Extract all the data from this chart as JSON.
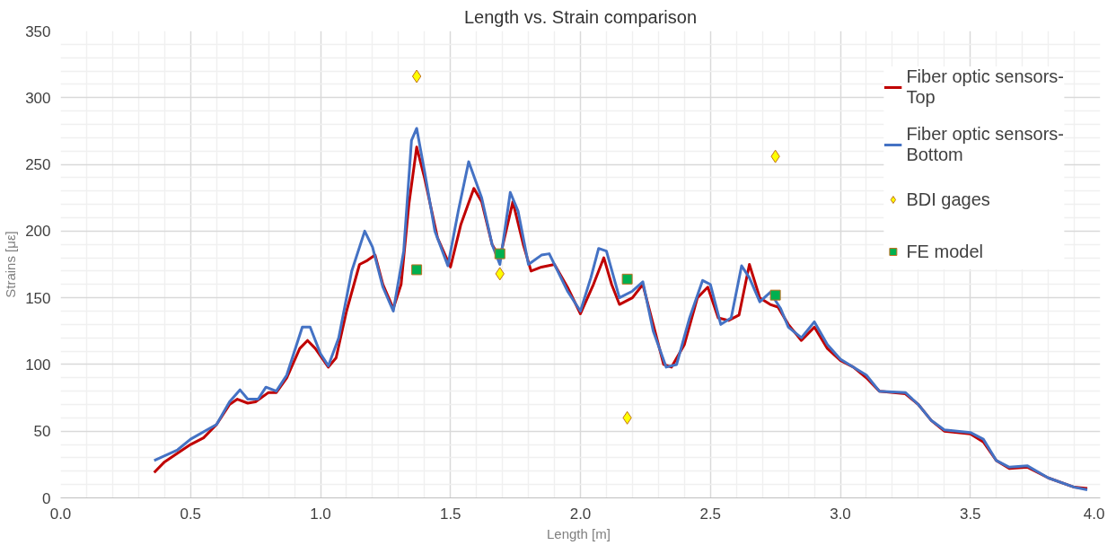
{
  "chart_data": {
    "type": "line",
    "title": "Length vs. Strain comparison",
    "xlabel": "Length  [m]",
    "ylabel": "Strains [με]",
    "xlim": [
      0,
      4
    ],
    "ylim": [
      0,
      350
    ],
    "xticks": [
      {
        "value": 0,
        "label": "0.0"
      },
      0.5,
      {
        "value": 1,
        "label": "1.0"
      },
      1.5,
      {
        "value": 2,
        "label": "2.0"
      },
      2.5,
      {
        "value": 3,
        "label": "3.0"
      },
      3.5,
      {
        "value": 4,
        "label": "4.0"
      }
    ],
    "yticks": [
      0,
      50,
      100,
      150,
      200,
      250,
      300,
      350
    ],
    "grid": true,
    "legend": "top right",
    "series": [
      {
        "name": "Fiber optic sensors-Top",
        "color": "#c00000",
        "marker": "none",
        "x": [
          0.36,
          0.4,
          0.5,
          0.55,
          0.6,
          0.65,
          0.68,
          0.72,
          0.75,
          0.8,
          0.83,
          0.87,
          0.92,
          0.95,
          0.98,
          1.03,
          1.06,
          1.1,
          1.15,
          1.18,
          1.21,
          1.24,
          1.28,
          1.31,
          1.34,
          1.37,
          1.4,
          1.45,
          1.5,
          1.54,
          1.59,
          1.62,
          1.66,
          1.69,
          1.74,
          1.78,
          1.81,
          1.85,
          1.9,
          1.95,
          2.0,
          2.05,
          2.09,
          2.12,
          2.15,
          2.2,
          2.24,
          2.28,
          2.32,
          2.35,
          2.4,
          2.45,
          2.49,
          2.53,
          2.57,
          2.61,
          2.65,
          2.69,
          2.73,
          2.76,
          2.8,
          2.85,
          2.9,
          2.95,
          3.0,
          3.05,
          3.1,
          3.15,
          3.25,
          3.3,
          3.35,
          3.4,
          3.5,
          3.55,
          3.6,
          3.65,
          3.72,
          3.8,
          3.9,
          3.95
        ],
        "values": [
          19,
          27,
          40,
          45,
          55,
          70,
          74,
          71,
          72,
          79,
          79,
          90,
          112,
          118,
          112,
          98,
          105,
          140,
          175,
          178,
          182,
          160,
          142,
          160,
          220,
          263,
          240,
          195,
          173,
          205,
          232,
          222,
          190,
          180,
          222,
          190,
          170,
          173,
          175,
          158,
          138,
          160,
          180,
          160,
          145,
          150,
          160,
          130,
          100,
          98,
          115,
          150,
          158,
          135,
          133,
          137,
          175,
          150,
          145,
          143,
          130,
          118,
          128,
          112,
          103,
          98,
          90,
          80,
          78,
          70,
          58,
          50,
          48,
          42,
          28,
          22,
          23,
          15,
          8,
          7
        ]
      },
      {
        "name": "Fiber optic sensors-Bottom",
        "color": "#4472c4",
        "marker": "none",
        "x": [
          0.36,
          0.45,
          0.5,
          0.6,
          0.65,
          0.69,
          0.72,
          0.76,
          0.79,
          0.83,
          0.87,
          0.93,
          0.96,
          1.0,
          1.03,
          1.07,
          1.12,
          1.17,
          1.2,
          1.24,
          1.28,
          1.32,
          1.35,
          1.37,
          1.4,
          1.44,
          1.49,
          1.53,
          1.57,
          1.62,
          1.66,
          1.69,
          1.73,
          1.76,
          1.8,
          1.85,
          1.88,
          1.95,
          2.0,
          2.04,
          2.07,
          2.1,
          2.15,
          2.2,
          2.24,
          2.28,
          2.33,
          2.37,
          2.42,
          2.47,
          2.5,
          2.54,
          2.58,
          2.62,
          2.65,
          2.69,
          2.73,
          2.77,
          2.8,
          2.85,
          2.9,
          2.95,
          3.0,
          3.1,
          3.15,
          3.25,
          3.3,
          3.35,
          3.4,
          3.5,
          3.55,
          3.6,
          3.65,
          3.72,
          3.8,
          3.9,
          3.95
        ],
        "values": [
          28,
          36,
          44,
          55,
          72,
          81,
          74,
          74,
          83,
          80,
          92,
          128,
          128,
          108,
          99,
          120,
          170,
          200,
          188,
          158,
          140,
          185,
          268,
          277,
          245,
          200,
          174,
          215,
          252,
          225,
          190,
          175,
          229,
          215,
          175,
          182,
          183,
          155,
          140,
          165,
          187,
          185,
          150,
          155,
          162,
          125,
          98,
          100,
          135,
          163,
          160,
          130,
          135,
          174,
          165,
          147,
          154,
          142,
          128,
          120,
          132,
          115,
          104,
          92,
          80,
          79,
          70,
          58,
          51,
          49,
          44,
          28,
          23,
          24,
          15,
          8,
          6
        ]
      },
      {
        "name": "BDI gages",
        "type": "scatter",
        "color": "#ffff00",
        "marker": "diamond",
        "x": [
          1.37,
          1.69,
          2.18,
          2.75
        ],
        "values": [
          316,
          168,
          60,
          256
        ]
      },
      {
        "name": "FE model",
        "type": "scatter",
        "color": "#00b050",
        "marker": "square",
        "x": [
          1.37,
          1.69,
          2.18,
          2.75
        ],
        "values": [
          171,
          183,
          164,
          152
        ]
      }
    ]
  }
}
